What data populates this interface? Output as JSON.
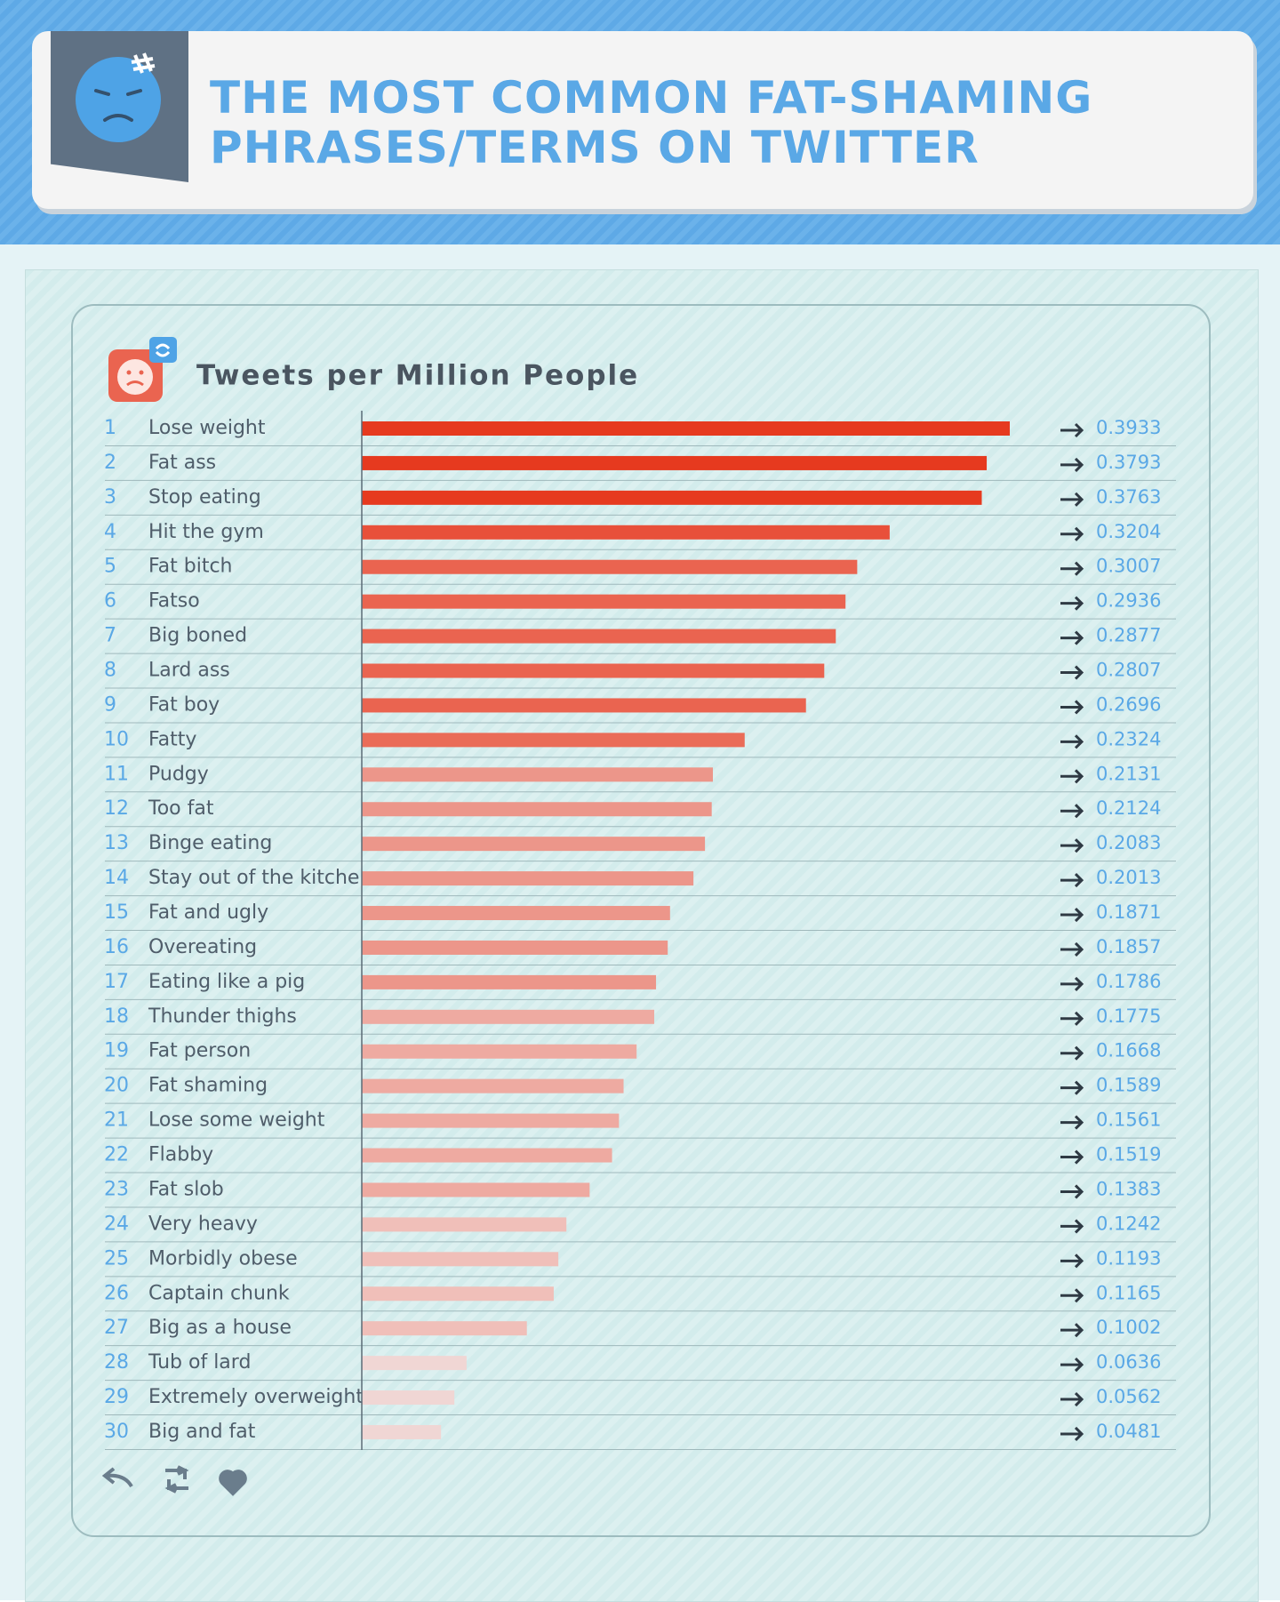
{
  "chart_data": {
    "type": "bar",
    "title": "THE MOST COMMON FAT-SHAMING PHRASES/TERMS ON TWITTER",
    "subtitle": "Tweets per Million People",
    "ranks": [
      1,
      2,
      3,
      4,
      5,
      6,
      7,
      8,
      9,
      10,
      11,
      12,
      13,
      14,
      15,
      16,
      17,
      18,
      19,
      20,
      21,
      22,
      23,
      24,
      25,
      26,
      27,
      28,
      29,
      30
    ],
    "categories": [
      "Lose weight",
      "Fat ass",
      "Stop eating",
      "Hit the gym",
      "Fat bitch",
      "Fatso",
      "Big boned",
      "Lard ass",
      "Fat boy",
      "Fatty",
      "Pudgy",
      "Too fat",
      "Binge eating",
      "Stay out of the kitchen",
      "Fat and ugly",
      "Overeating",
      "Eating like a pig",
      "Thunder thighs",
      "Fat person",
      "Fat shaming",
      "Lose some weight",
      "Flabby",
      "Fat slob",
      "Very heavy",
      "Morbidly obese",
      "Captain chunk",
      "Big as a house",
      "Tub of lard",
      "Extremely overweight",
      "Big and fat"
    ],
    "values": [
      0.3933,
      0.3793,
      0.3763,
      0.3204,
      0.3007,
      0.2936,
      0.2877,
      0.2807,
      0.2696,
      0.2324,
      0.2131,
      0.2124,
      0.2083,
      0.2013,
      0.1871,
      0.1857,
      0.1786,
      0.1775,
      0.1668,
      0.1589,
      0.1561,
      0.1519,
      0.1383,
      0.1242,
      0.1193,
      0.1165,
      0.1002,
      0.0636,
      0.0562,
      0.0481
    ],
    "colors": [
      "#e63a1f",
      "#e63a1f",
      "#e63a1f",
      "#e8503a",
      "#ea6450",
      "#ea6450",
      "#ea6450",
      "#ea6450",
      "#ea6450",
      "#ea6c58",
      "#ec968a",
      "#ec968a",
      "#ec968a",
      "#ec968a",
      "#ec968a",
      "#ec968a",
      "#ec968a",
      "#eeaaa1",
      "#eeaaa1",
      "#eeaaa1",
      "#eeaaa1",
      "#eeaaa1",
      "#eeaaa1",
      "#f0bfb9",
      "#f0bfb9",
      "#f0bfb9",
      "#f0bfb9",
      "#f0d6d4",
      "#f0d6d4",
      "#f0d6d4"
    ]
  }
}
